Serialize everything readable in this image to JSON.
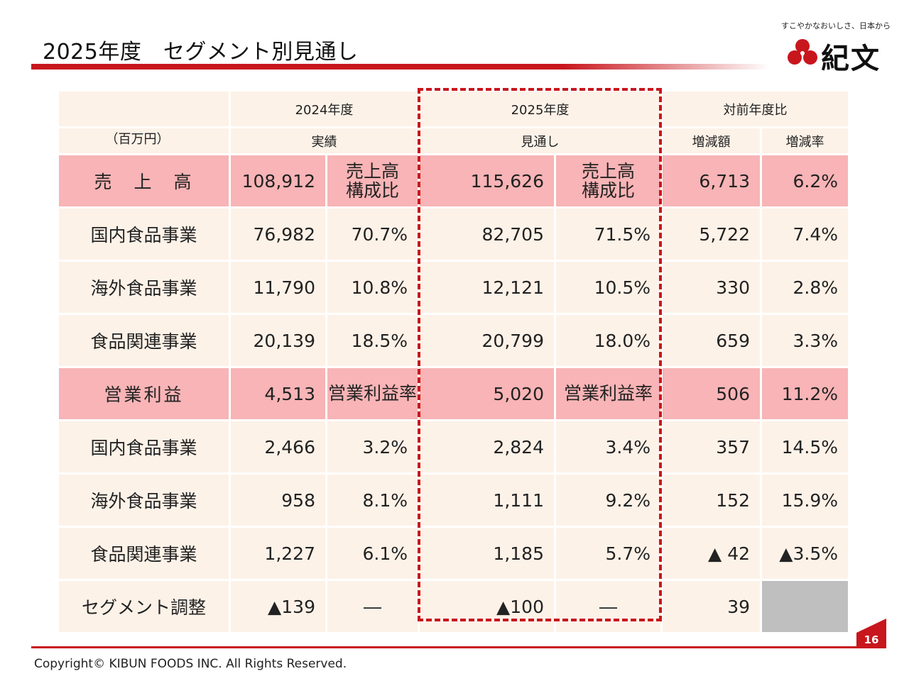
{
  "header": {
    "title": "2025年度　セグメント別見通し",
    "tagline": "すこやかなおいしさ、日本から",
    "logo_text": "紀文"
  },
  "table": {
    "col_groups": {
      "fy2024": "2024年度",
      "fy2025": "2025年度",
      "yoy": "対前年度比"
    },
    "unit_note": "（百万円）",
    "sub_headers": {
      "actual": "実績",
      "forecast": "見通し",
      "change_amount": "増減額",
      "change_rate": "増減率"
    },
    "rows": [
      {
        "label": "売　上　高",
        "highlight": true,
        "v2024": "108,912",
        "r2024_top": "売上高",
        "r2024_bot": "構成比",
        "v2025": "115,626",
        "r2025_top": "売上高",
        "r2025_bot": "構成比",
        "diff": "6,713",
        "rate": "6.2%"
      },
      {
        "label": "国内食品事業",
        "v2024": "76,982",
        "r2024": "70.7%",
        "v2025": "82,705",
        "r2025": "71.5%",
        "diff": "5,722",
        "rate": "7.4%"
      },
      {
        "label": "海外食品事業",
        "v2024": "11,790",
        "r2024": "10.8%",
        "v2025": "12,121",
        "r2025": "10.5%",
        "diff": "330",
        "rate": "2.8%"
      },
      {
        "label": "食品関連事業",
        "v2024": "20,139",
        "r2024": "18.5%",
        "v2025": "20,799",
        "r2025": "18.0%",
        "diff": "659",
        "rate": "3.3%"
      },
      {
        "label": "営業利益",
        "highlight": true,
        "v2024": "4,513",
        "r2024": "営業利益率",
        "v2025": "5,020",
        "r2025": "営業利益率",
        "diff": "506",
        "rate": "11.2%"
      },
      {
        "label": "国内食品事業",
        "v2024": "2,466",
        "r2024": "3.2%",
        "v2025": "2,824",
        "r2025": "3.4%",
        "diff": "357",
        "rate": "14.5%"
      },
      {
        "label": "海外食品事業",
        "v2024": "958",
        "r2024": "8.1%",
        "v2025": "1,111",
        "r2025": "9.2%",
        "diff": "152",
        "rate": "15.9%"
      },
      {
        "label": "食品関連事業",
        "v2024": "1,227",
        "r2024": "6.1%",
        "v2025": "1,185",
        "r2025": "5.7%",
        "diff": "▲ 42",
        "rate": "▲3.5%"
      },
      {
        "label": "セグメント調整",
        "v2024": "▲139",
        "r2024": "―",
        "v2025": "▲100",
        "r2025": "―",
        "diff": "39",
        "rate": ""
      }
    ]
  },
  "footer": {
    "page_number": "16",
    "copyright": "Copyright©  KIBUN FOODS INC. All Rights Reserved."
  },
  "colors": {
    "accent_red": "#c8161d",
    "row_highlight": "#f8b4b6",
    "cell_bg": "#fdf2e8",
    "blank_cell": "#bfbfbf"
  }
}
